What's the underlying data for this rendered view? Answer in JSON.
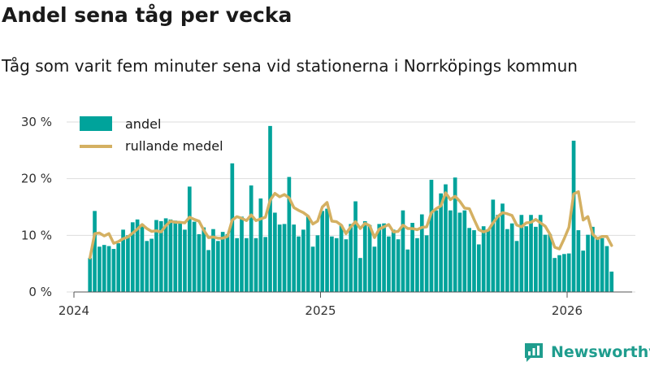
{
  "header": {
    "title": "Andel sena tåg per vecka",
    "subtitle": "Tåg som varit fem minuter sena vid stationerna i Norrköpings kommun"
  },
  "brand": {
    "name": "Newsworthy"
  },
  "colors": {
    "bar": "#00a39b",
    "line": "#d4b062",
    "grid": "#dddddd",
    "axis": "#555555",
    "brand": "#1f9d8e"
  },
  "chart_data": {
    "type": "bar",
    "title": "Andel sena tåg per vecka",
    "xlabel": "",
    "ylabel": "",
    "x_ticks": [
      {
        "label": "2024",
        "year": 2024
      },
      {
        "label": "2025",
        "year": 2025
      },
      {
        "label": "2026",
        "year": 2026
      }
    ],
    "y_ticks": [
      {
        "label": "0 %",
        "value": 0
      },
      {
        "label": "10 %",
        "value": 10
      },
      {
        "label": "20 %",
        "value": 20
      },
      {
        "label": "30 %",
        "value": 30
      }
    ],
    "ylim": [
      0,
      32
    ],
    "xlim_years": [
      2024.0,
      2026.25
    ],
    "first_week_year": 2024.065,
    "weeks_per_year": 52,
    "legend": [
      {
        "label": "andel",
        "kind": "bar"
      },
      {
        "label": "rullande medel",
        "kind": "line"
      }
    ],
    "series": [
      {
        "name": "andel",
        "kind": "bar",
        "values": [
          6,
          14.3,
          8,
          8.3,
          8.1,
          7.6,
          8.6,
          11,
          10,
          12.3,
          12.8,
          12,
          9,
          9.4,
          12.7,
          12.5,
          13,
          12.8,
          12.6,
          12.2,
          11,
          18.6,
          12.4,
          10.2,
          11.4,
          7.4,
          11.1,
          9,
          10.6,
          10.2,
          22.7,
          9.5,
          13.3,
          9.5,
          18.8,
          9.5,
          16.5,
          9.7,
          29.3,
          14,
          11.9,
          12,
          20.3,
          11.9,
          9.8,
          11,
          13.4,
          8,
          10,
          14.3,
          14.7,
          9.8,
          9.5,
          11.8,
          9.3,
          12,
          16,
          6,
          12.5,
          11.8,
          8,
          12,
          12.1,
          9.8,
          11,
          9.3,
          14.4,
          7.5,
          12.2,
          9.5,
          13.7,
          10,
          19.8,
          14.4,
          17.4,
          19,
          14.4,
          20.2,
          14,
          14.4,
          11.3,
          10.9,
          8.4,
          11.6,
          11,
          16.3,
          13.6,
          15.6,
          11.1,
          12.1,
          9,
          13.6,
          11.6,
          13.6,
          11.5,
          13.6,
          10.1,
          10.2,
          6,
          6.5,
          6.7,
          6.8,
          26.7,
          10.9,
          7.3,
          10.1,
          11.5,
          9.4,
          9.5,
          8.1,
          3.6
        ]
      },
      {
        "name": "rullande medel",
        "kind": "line",
        "values": [
          6,
          10.3,
          10.4,
          9.9,
          10.3,
          8.6,
          8.9,
          9.4,
          9.7,
          10.4,
          11.1,
          11.9,
          11.2,
          10.7,
          10.8,
          10.6,
          11.7,
          12.5,
          12.3,
          12.3,
          12.2,
          13.2,
          12.8,
          12.5,
          10.9,
          9.6,
          9.7,
          9.5,
          9.5,
          9.8,
          12.7,
          13.3,
          13,
          12.6,
          13.6,
          12.6,
          12.9,
          13.2,
          16.2,
          17.4,
          16.8,
          17.2,
          16.6,
          14.9,
          14.4,
          14,
          13.4,
          12,
          12.5,
          15,
          15.8,
          12.5,
          12.4,
          11.8,
          10.3,
          11.5,
          12.4,
          11.2,
          12.1,
          11.7,
          9.6,
          11.1,
          11.5,
          11.9,
          10.6,
          10.7,
          11.8,
          11.2,
          11.2,
          11,
          11.4,
          11.5,
          14,
          14.7,
          15.2,
          17.5,
          16.3,
          16.9,
          16,
          14.8,
          14.7,
          12.8,
          11,
          10.6,
          10.9,
          12.2,
          13.3,
          14,
          13.8,
          13.5,
          11.8,
          11.5,
          12.2,
          12.3,
          12.8,
          12.2,
          11.6,
          10.2,
          7.9,
          7.6,
          9.4,
          11.4,
          17.3,
          17.7,
          12.7,
          13.3,
          10.2,
          9.4,
          9.8,
          9.8,
          8.2
        ]
      }
    ]
  }
}
